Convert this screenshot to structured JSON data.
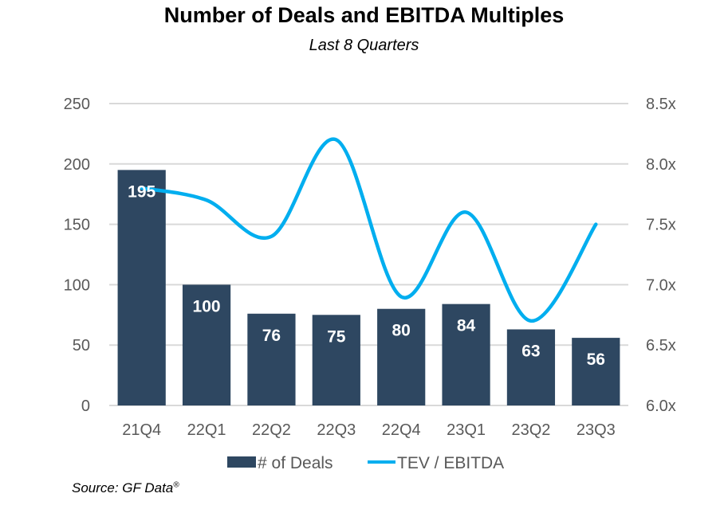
{
  "chart_data": {
    "type": "bar+line",
    "title": "Number of Deals and EBITDA Multiples",
    "subtitle": "Last 8 Quarters",
    "source": "Source: GF Data",
    "source_mark": "®",
    "categories": [
      "21Q4",
      "22Q1",
      "22Q2",
      "22Q3",
      "22Q4",
      "23Q1",
      "23Q2",
      "23Q3"
    ],
    "series": [
      {
        "name": "# of Deals",
        "type": "bar",
        "axis": "left",
        "color": "#2E4761",
        "values": [
          195,
          100,
          76,
          75,
          80,
          84,
          63,
          56
        ],
        "data_labels": [
          "195",
          "100",
          "76",
          "75",
          "80",
          "84",
          "63",
          "56"
        ]
      },
      {
        "name": "TEV / EBITDA",
        "type": "line",
        "smooth": true,
        "axis": "right",
        "color": "#00AEEF",
        "values": [
          7.8,
          7.7,
          7.4,
          8.2,
          6.9,
          7.6,
          6.7,
          7.5
        ]
      }
    ],
    "y_left": {
      "min": 0,
      "max": 250,
      "ticks": [
        0,
        50,
        100,
        150,
        200,
        250
      ],
      "tick_labels": [
        "0",
        "50",
        "100",
        "150",
        "200",
        "250"
      ]
    },
    "y_right": {
      "min": 6.0,
      "max": 8.5,
      "ticks": [
        6.0,
        6.5,
        7.0,
        7.5,
        8.0,
        8.5
      ],
      "tick_labels": [
        "6.0x",
        "6.5x",
        "7.0x",
        "7.5x",
        "8.0x",
        "8.5x"
      ]
    },
    "grid": true,
    "gridline_color": "#D9D9D9",
    "legend_position": "bottom",
    "legend": [
      "# of Deals",
      "TEV / EBITDA"
    ]
  }
}
